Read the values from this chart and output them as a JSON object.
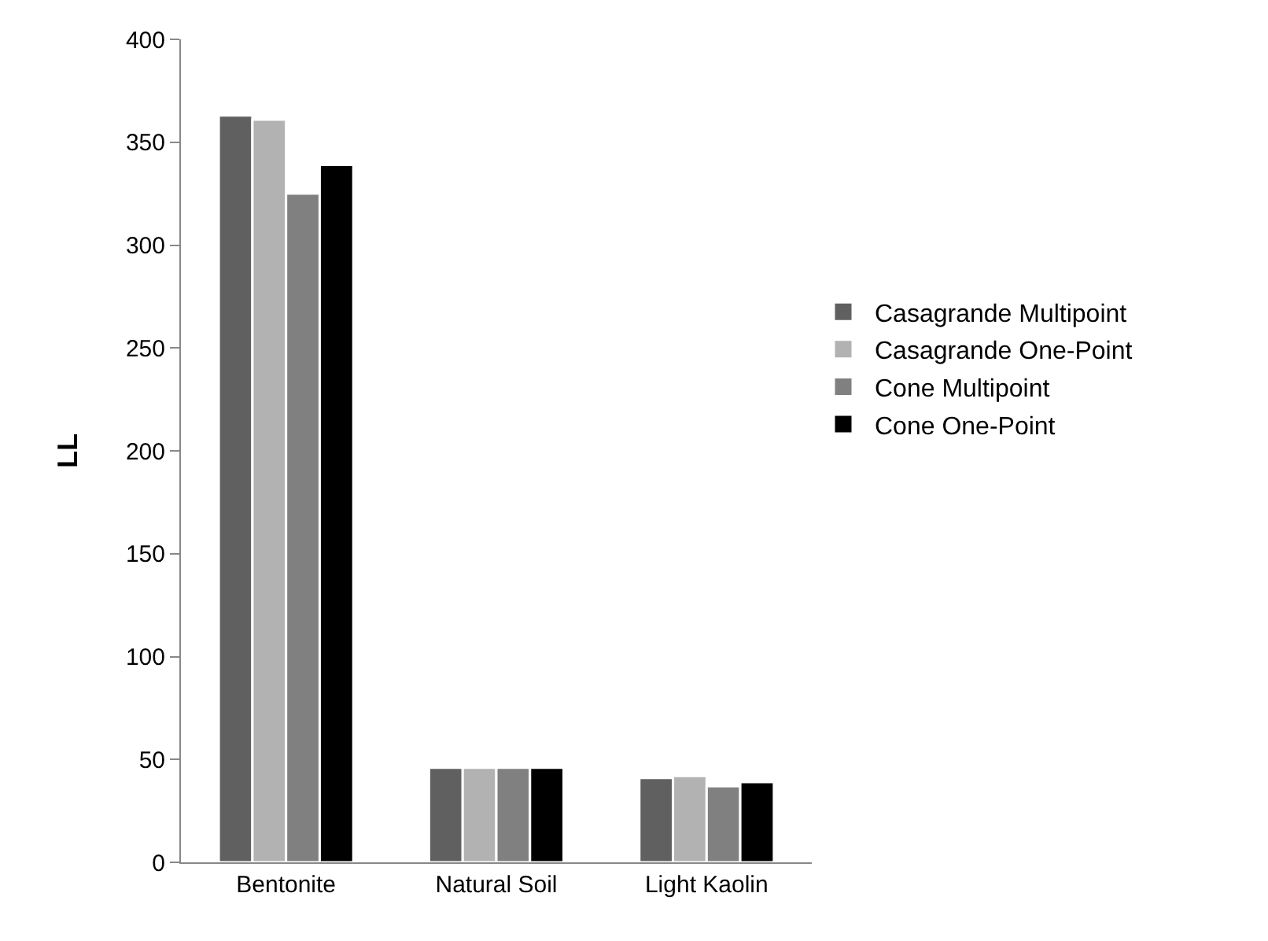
{
  "chart_data": {
    "type": "bar",
    "ylabel": "LL",
    "categories": [
      "Bentonite",
      "Natural Soil",
      "Light Kaolin"
    ],
    "series": [
      {
        "name": "Casagrande Multipoint",
        "color": "#606060",
        "values": [
          363,
          46,
          41
        ]
      },
      {
        "name": "Casagrande One-Point",
        "color": "#b2b2b2",
        "values": [
          361,
          46,
          42
        ]
      },
      {
        "name": "Cone Multipoint",
        "color": "#808080",
        "values": [
          325,
          46,
          37
        ]
      },
      {
        "name": "Cone One-Point",
        "color": "#000000",
        "values": [
          339,
          46,
          39
        ]
      }
    ],
    "ylim": [
      0,
      400
    ],
    "yticks": [
      0,
      50,
      100,
      150,
      200,
      250,
      300,
      350,
      400
    ],
    "grid": false,
    "legend": "right"
  }
}
